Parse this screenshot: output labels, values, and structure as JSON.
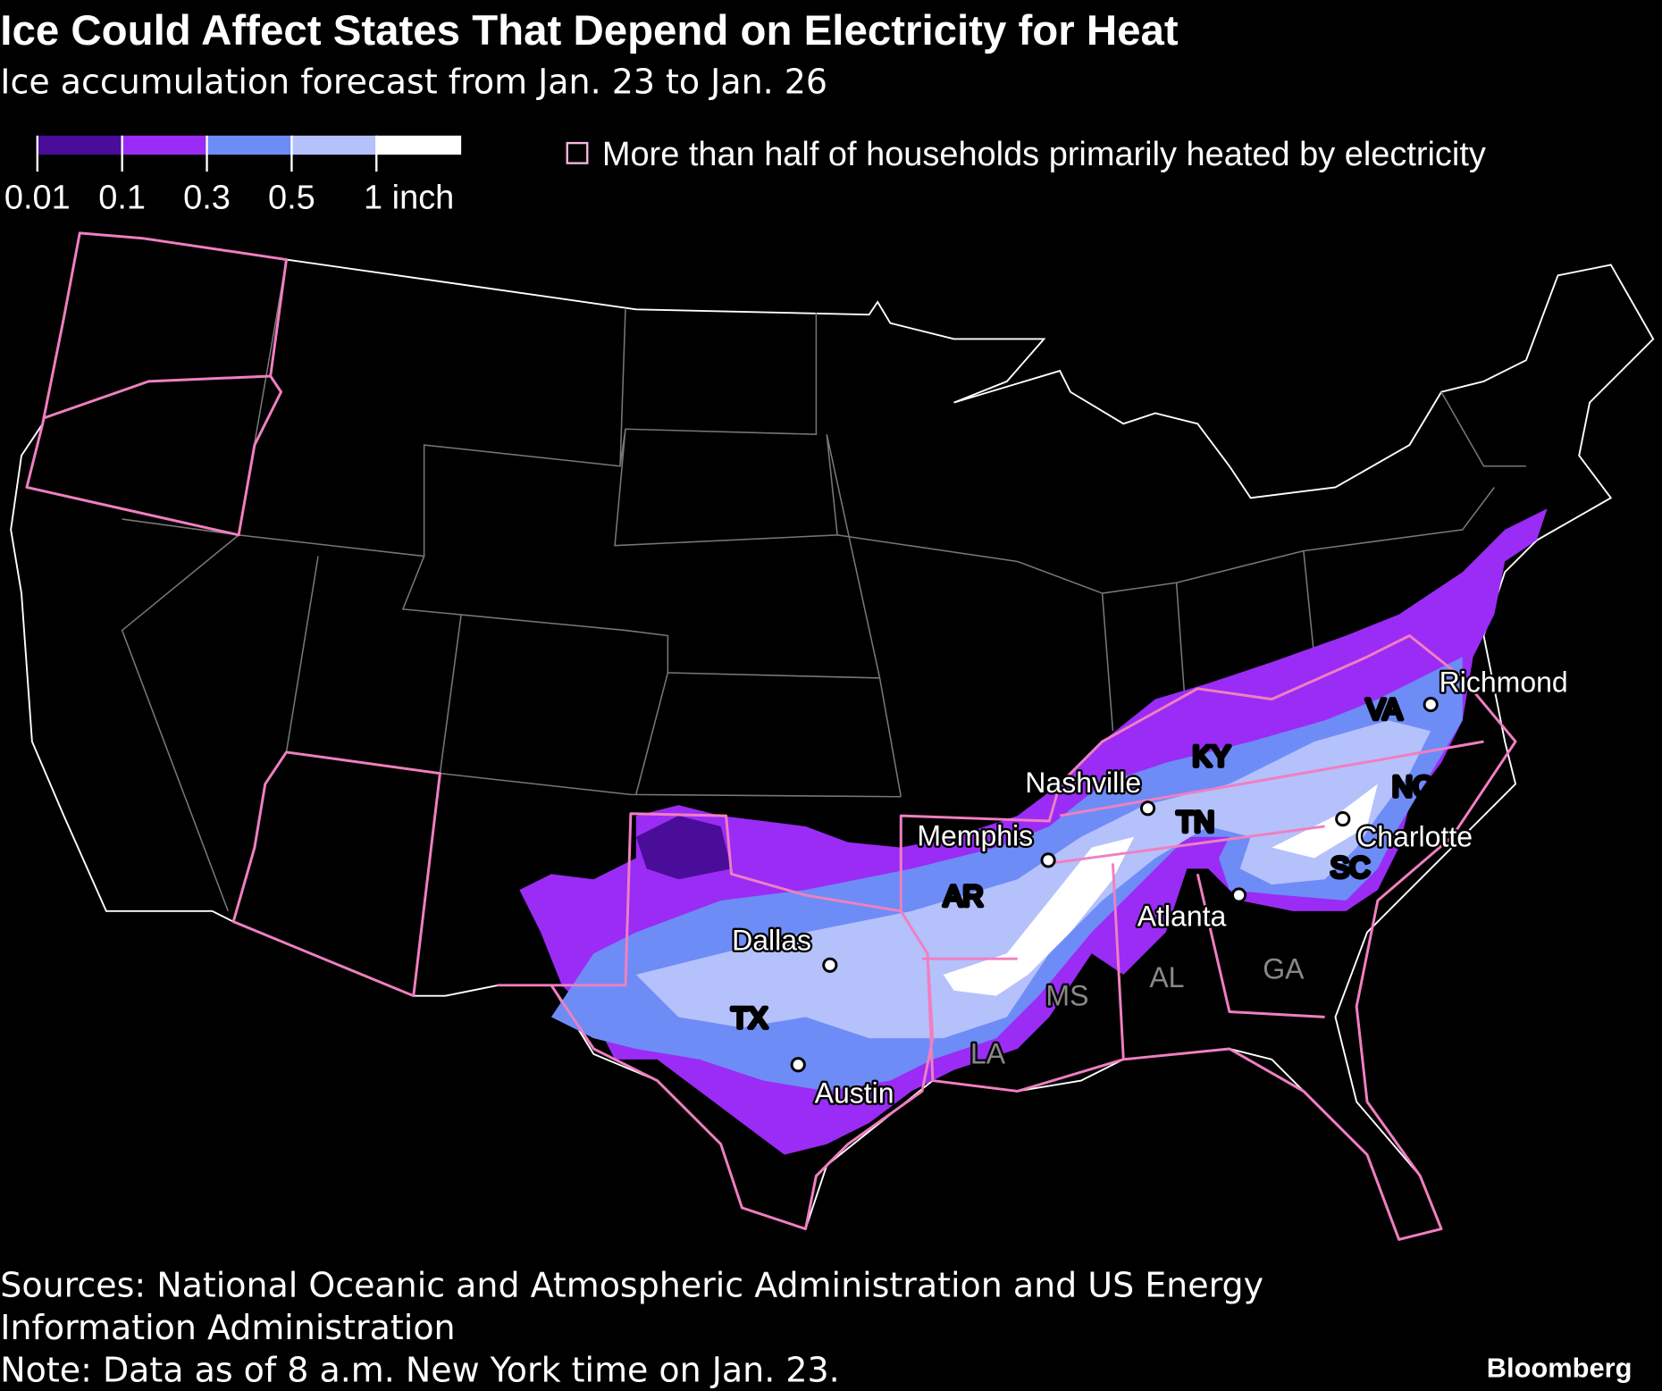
{
  "header": {
    "title": "Ice Could Affect States That Depend on Electricity for Heat",
    "subtitle": "Ice accumulation forecast from Jan. 23 to Jan. 26"
  },
  "legend": {
    "ticks": [
      0.01,
      0.1,
      0.3,
      0.5,
      {
        "value": 1,
        "label": "1 inch"
      }
    ],
    "colors": [
      "#4a0d9a",
      "#9a2cf5",
      "#6e8cf6",
      "#b5c1fb",
      "#ffffff"
    ],
    "note": "More than half of households primarily heated by electricity"
  },
  "map": {
    "cities": [
      "Richmond",
      "Nashville",
      "Memphis",
      "Charlotte",
      "Atlanta",
      "Dallas",
      "Austin"
    ],
    "states": [
      "VA",
      "KY",
      "NC",
      "TN",
      "SC",
      "AR",
      "TX",
      "AL",
      "GA",
      "MS",
      "LA"
    ]
  },
  "footer": {
    "sources": [
      "Sources: National Oceanic and Atmospheric Administration and US Energy",
      "Information Administration"
    ],
    "note": "Note: Data as of 8 a.m. New York time on Jan. 23.",
    "brand": "Bloomberg"
  }
}
